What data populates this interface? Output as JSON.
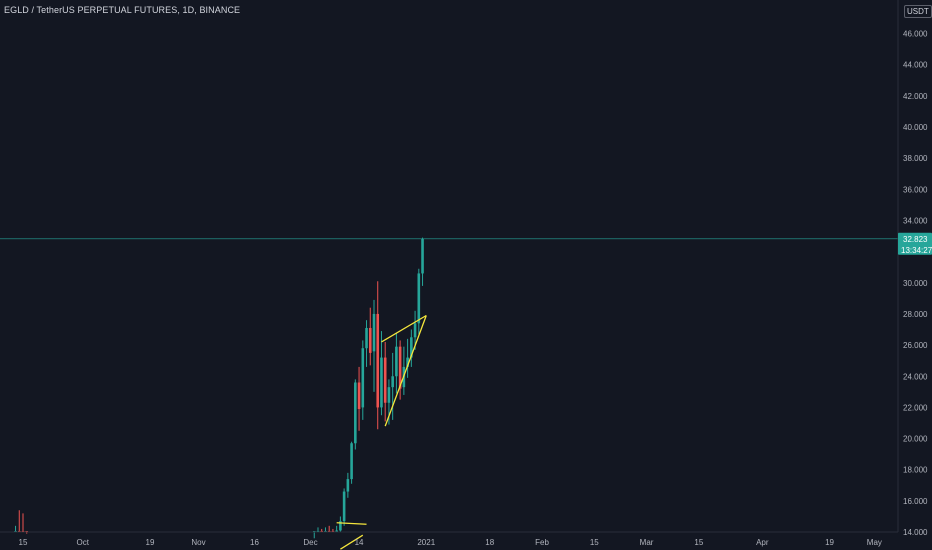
{
  "header": {
    "title": "EGLD / TetherUS PERPETUAL FUTURES, 1D, BINANCE",
    "currency": "USDT"
  },
  "colors": {
    "background": "#131722",
    "up": "#26a69a",
    "down": "#ef5350",
    "trendline": "#f5e63c",
    "price_line": "#26a69a",
    "axis_text": "#b2b5be"
  },
  "chart_data": {
    "type": "candlestick",
    "ylim": [
      13.0,
      46.0
    ],
    "y_ticks": [
      "14.000",
      "16.000",
      "18.000",
      "20.000",
      "22.000",
      "24.000",
      "26.000",
      "28.000",
      "30.000",
      "32.000",
      "34.000",
      "36.000",
      "38.000",
      "40.000",
      "42.000",
      "44.000",
      "46.000"
    ],
    "y_tick_values": [
      14,
      16,
      18,
      20,
      22,
      24,
      26,
      28,
      30,
      32,
      34,
      36,
      38,
      40,
      42,
      44,
      46
    ],
    "x_ticks": [
      {
        "label": "15",
        "day": 0
      },
      {
        "label": "Oct",
        "day": 16
      },
      {
        "label": "19",
        "day": 34
      },
      {
        "label": "Nov",
        "day": 47
      },
      {
        "label": "16",
        "day": 62
      },
      {
        "label": "Dec",
        "day": 77
      },
      {
        "label": "14",
        "day": 90
      },
      {
        "label": "2021",
        "day": 108
      },
      {
        "label": "18",
        "day": 125
      },
      {
        "label": "Feb",
        "day": 139
      },
      {
        "label": "15",
        "day": 153
      },
      {
        "label": "Mar",
        "day": 167
      },
      {
        "label": "15",
        "day": 181
      },
      {
        "label": "Apr",
        "day": 198
      },
      {
        "label": "19",
        "day": 216
      },
      {
        "label": "May",
        "day": 228
      }
    ],
    "current_price": {
      "value": 32.823,
      "label": "32.823",
      "countdown": "13:34:27"
    },
    "candles": [
      {
        "day": -2,
        "o": 13.2,
        "h": 14.4,
        "l": 12.8,
        "c": 14.0
      },
      {
        "day": -1,
        "o": 14.0,
        "h": 15.4,
        "l": 13.0,
        "c": 13.5
      },
      {
        "day": 0,
        "o": 13.9,
        "h": 15.2,
        "l": 13.1,
        "c": 13.2
      },
      {
        "day": 1,
        "o": 13.3,
        "h": 13.9,
        "l": 12.9,
        "c": 13.0
      },
      {
        "day": 78,
        "o": 12.9,
        "h": 13.6,
        "l": 12.7,
        "c": 13.3
      },
      {
        "day": 79,
        "o": 13.2,
        "h": 14.3,
        "l": 12.8,
        "c": 13.8
      },
      {
        "day": 80,
        "o": 13.8,
        "h": 14.2,
        "l": 13.1,
        "c": 13.4
      },
      {
        "day": 81,
        "o": 13.4,
        "h": 14.3,
        "l": 12.9,
        "c": 14.0
      },
      {
        "day": 82,
        "o": 14.0,
        "h": 14.4,
        "l": 13.3,
        "c": 13.5
      },
      {
        "day": 83,
        "o": 13.6,
        "h": 14.2,
        "l": 12.9,
        "c": 13.3
      },
      {
        "day": 84,
        "o": 13.3,
        "h": 14.4,
        "l": 13.0,
        "c": 14.1
      },
      {
        "day": 85,
        "o": 14.1,
        "h": 15.0,
        "l": 13.5,
        "c": 14.7
      },
      {
        "day": 86,
        "o": 14.7,
        "h": 16.8,
        "l": 14.4,
        "c": 16.6
      },
      {
        "day": 87,
        "o": 16.6,
        "h": 17.8,
        "l": 16.2,
        "c": 17.4
      },
      {
        "day": 88,
        "o": 17.4,
        "h": 19.8,
        "l": 17.1,
        "c": 19.7
      },
      {
        "day": 89,
        "o": 19.7,
        "h": 23.8,
        "l": 19.3,
        "c": 23.6
      },
      {
        "day": 90,
        "o": 23.6,
        "h": 24.6,
        "l": 20.5,
        "c": 21.9
      },
      {
        "day": 91,
        "o": 22.0,
        "h": 26.3,
        "l": 21.2,
        "c": 25.8
      },
      {
        "day": 92,
        "o": 25.8,
        "h": 27.6,
        "l": 24.6,
        "c": 27.1
      },
      {
        "day": 93,
        "o": 27.1,
        "h": 28.4,
        "l": 24.7,
        "c": 25.5
      },
      {
        "day": 94,
        "o": 25.6,
        "h": 28.9,
        "l": 23.0,
        "c": 28.0
      },
      {
        "day": 95,
        "o": 28.0,
        "h": 30.1,
        "l": 20.6,
        "c": 22.0
      },
      {
        "day": 96,
        "o": 22.0,
        "h": 26.9,
        "l": 21.5,
        "c": 25.2
      },
      {
        "day": 97,
        "o": 25.2,
        "h": 26.2,
        "l": 21.1,
        "c": 22.3
      },
      {
        "day": 98,
        "o": 22.3,
        "h": 23.8,
        "l": 20.9,
        "c": 23.3
      },
      {
        "day": 99,
        "o": 23.3,
        "h": 25.5,
        "l": 21.2,
        "c": 24.0
      },
      {
        "day": 100,
        "o": 24.0,
        "h": 26.8,
        "l": 22.9,
        "c": 25.9
      },
      {
        "day": 101,
        "o": 25.9,
        "h": 26.3,
        "l": 22.5,
        "c": 23.2
      },
      {
        "day": 102,
        "o": 23.3,
        "h": 25.9,
        "l": 22.8,
        "c": 24.6
      },
      {
        "day": 103,
        "o": 24.6,
        "h": 26.4,
        "l": 23.9,
        "c": 25.2
      },
      {
        "day": 104,
        "o": 25.2,
        "h": 27.0,
        "l": 24.6,
        "c": 26.5
      },
      {
        "day": 105,
        "o": 26.5,
        "h": 28.2,
        "l": 25.7,
        "c": 27.4
      },
      {
        "day": 106,
        "o": 27.4,
        "h": 30.9,
        "l": 26.7,
        "c": 30.6
      },
      {
        "day": 107,
        "o": 30.6,
        "h": 32.9,
        "l": 29.8,
        "c": 32.823
      }
    ],
    "trendlines": [
      {
        "from": {
          "day": 84,
          "price": 14.6
        },
        "to": {
          "day": 92,
          "price": 14.5
        }
      },
      {
        "from": {
          "day": 85,
          "price": 12.9
        },
        "to": {
          "day": 91,
          "price": 13.8
        }
      },
      {
        "from": {
          "day": 96,
          "price": 26.2
        },
        "to": {
          "day": 108,
          "price": 27.9
        }
      },
      {
        "from": {
          "day": 97,
          "price": 20.8
        },
        "to": {
          "day": 108,
          "price": 27.9
        }
      }
    ]
  }
}
